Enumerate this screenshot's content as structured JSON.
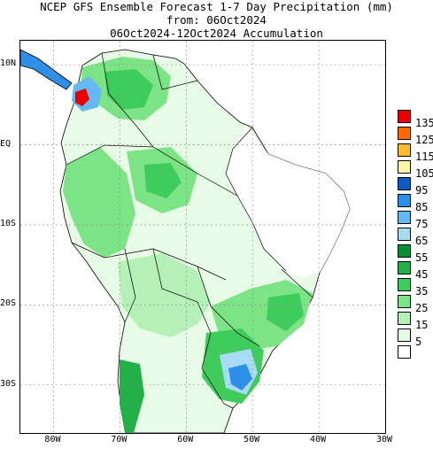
{
  "title": {
    "line1": "NCEP GFS Ensemble Forecast 1-7 Day Precipitation (mm)",
    "line2": "from: 06Oct2024",
    "line3": "06Oct2024-12Oct2024 Accumulation"
  },
  "axes": {
    "lat_labels": [
      "10N",
      "EQ",
      "10S",
      "20S",
      "30S"
    ],
    "lon_labels": [
      "80W",
      "70W",
      "60W",
      "50W",
      "40W",
      "30W"
    ],
    "lon_range": [
      -85,
      -30
    ],
    "lat_range": [
      -36,
      13
    ]
  },
  "legend": {
    "labels": [
      "135",
      "125",
      "115",
      "105",
      "95",
      "85",
      "75",
      "65",
      "55",
      "45",
      "35",
      "25",
      "15",
      "5"
    ],
    "colors": [
      "#e80000",
      "#ff6a00",
      "#ffbb33",
      "#fff6a8",
      "#0d5bc2",
      "#2d8fe8",
      "#66b8f0",
      "#a8dcf5",
      "#0b8f32",
      "#23b04a",
      "#3fcc5c",
      "#7de387",
      "#b5f0b6",
      "#e6fbe6"
    ],
    "extra_bottom_color": "#ffffff"
  }
}
